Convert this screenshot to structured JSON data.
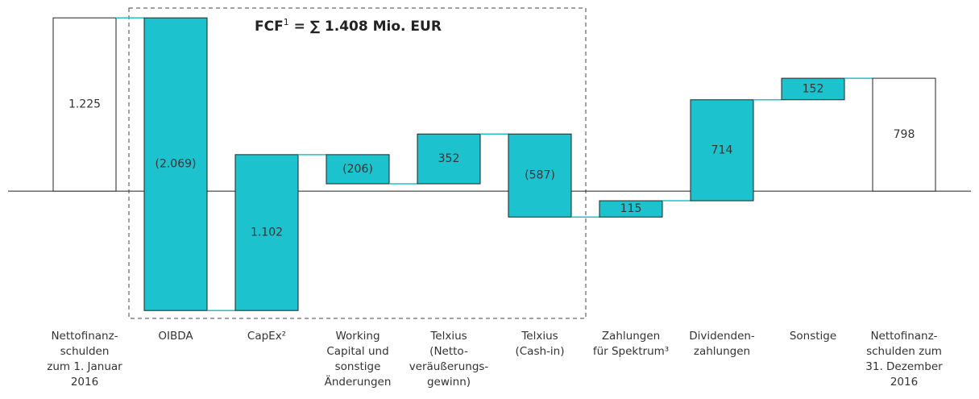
{
  "chart_data": {
    "type": "waterfall",
    "annotation": {
      "text": "FCF",
      "sup": "1",
      "rest": " = ∑ 1.408 Mio. EUR"
    },
    "categories": [
      "Nettofinanz-\nschulden\nzum 1. Januar\n2016",
      "OIBDA",
      "CapEx²",
      "Working\nCapital und\nsonstige\nÄnderungen",
      "Telxius\n(Netto-\nveräußerungs-\ngewinn)",
      "Telxius\n(Cash-in)",
      "Zahlungen\nfür Spektrum³",
      "Dividenden-\nzahlungen",
      "Sonstige",
      "Nettofinanz-\nschulden zum\n31. Dezember\n2016"
    ],
    "values": [
      1225,
      -2069,
      1102,
      -206,
      352,
      -587,
      115,
      714,
      152,
      798
    ],
    "value_labels": [
      "1.225",
      "(2.069)",
      "1.102",
      "(206)",
      "352",
      "(587)",
      "115",
      "714",
      "152",
      "798"
    ],
    "color": "#1cc3cf",
    "total_color": "#ffffff",
    "ylim": [
      -1000,
      1300
    ]
  }
}
